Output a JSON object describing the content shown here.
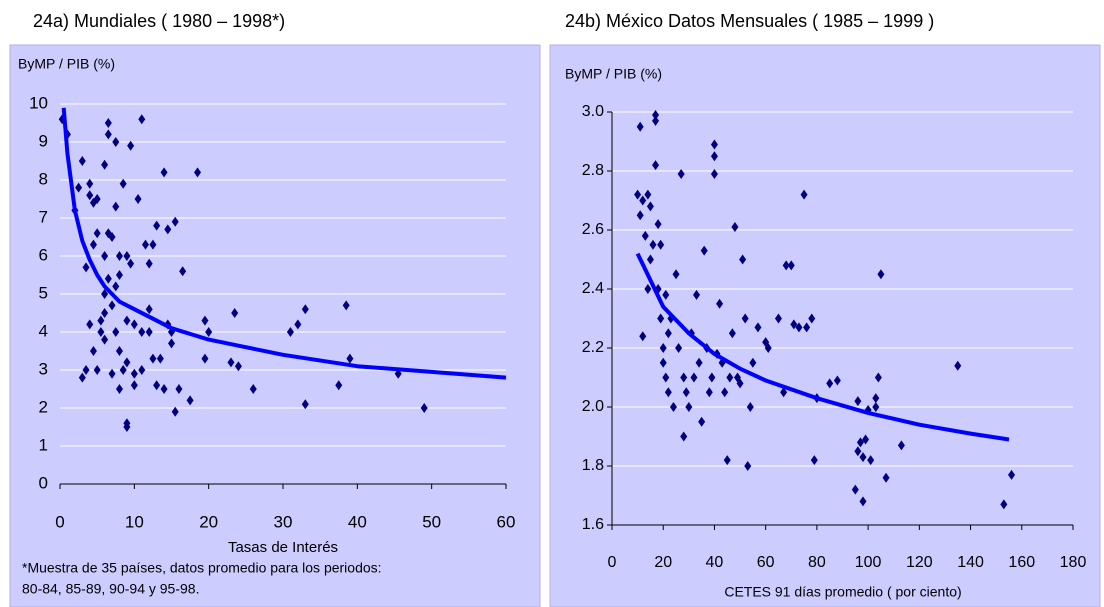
{
  "chart_data": [
    {
      "type": "scatter",
      "title": "24a) Mundiales ( 1980 – 1998*)",
      "ylabel": "ByMP / PIB (%)",
      "xlabel": "Tasas de Interés",
      "footnote": [
        "*Muestra de 35 países, datos promedio para los periodos:",
        "80-84, 85-89, 90-94 y 95-98."
      ],
      "xlim": [
        0,
        60
      ],
      "ylim": [
        0,
        10
      ],
      "xticks": [
        0,
        10,
        20,
        30,
        40,
        50,
        60
      ],
      "yticks": [
        0,
        1,
        2,
        3,
        4,
        5,
        6,
        7,
        8,
        9,
        10
      ],
      "grid": true,
      "series": [
        {
          "type": "scatter",
          "marker": "diamond",
          "color": "#000080",
          "x": [
            0.3,
            1,
            2,
            2.5,
            3,
            3.5,
            3,
            3.5,
            4,
            4,
            4.5,
            4,
            5,
            5,
            4.5,
            4.5,
            5,
            5.5,
            5.5,
            6,
            6,
            6,
            6,
            6,
            6.5,
            6.5,
            6.5,
            6.5,
            7,
            7,
            7,
            7.5,
            7.5,
            7.5,
            7.5,
            8,
            8,
            8,
            8,
            8.5,
            8.5,
            9,
            9,
            9,
            9,
            9,
            9.5,
            9.5,
            10,
            10,
            10,
            10.5,
            11,
            11,
            11,
            11.5,
            12,
            12,
            12,
            12.5,
            12.5,
            13,
            13,
            13.5,
            14,
            14,
            14.5,
            14.5,
            15,
            15,
            15.5,
            15.5,
            16,
            16.5,
            17.5,
            18.5,
            19.5,
            19.5,
            20,
            23,
            23.5,
            24,
            26,
            31,
            32,
            33,
            33,
            37.5,
            38.5,
            39,
            45.5,
            49
          ],
          "values": [
            9.6,
            9.2,
            7.2,
            7.8,
            8.5,
            5.7,
            2.8,
            3,
            4.2,
            7.6,
            7.4,
            7.9,
            7.5,
            6.6,
            6.3,
            3.5,
            3,
            4,
            4.3,
            8.4,
            6,
            5,
            4.5,
            3.8,
            9.2,
            9.5,
            6.6,
            5.4,
            2.9,
            4.7,
            6.5,
            9,
            7.3,
            5.2,
            4,
            6,
            5.5,
            3.5,
            2.5,
            7.9,
            3,
            1.6,
            1.5,
            6,
            4.3,
            3.2,
            8.9,
            5.8,
            4.2,
            2.6,
            2.9,
            7.5,
            9.6,
            4,
            3,
            6.3,
            5.8,
            4.6,
            4,
            6.3,
            3.3,
            6.8,
            2.6,
            3.3,
            8.2,
            2.5,
            6.7,
            4.2,
            4,
            3.7,
            6.9,
            1.9,
            2.5,
            5.6,
            2.2,
            8.2,
            4.3,
            3.3,
            4,
            3.2,
            4.5,
            3.1,
            2.5,
            4,
            4.2,
            4.6,
            2.1,
            2.6,
            4.7,
            3.3,
            2.9,
            2
          ]
        },
        {
          "type": "line",
          "color": "#0000ff",
          "x": [
            0.5,
            1,
            2,
            3,
            4,
            5,
            6,
            8,
            10,
            15,
            20,
            25,
            30,
            40,
            50,
            60
          ],
          "values": [
            9.9,
            8.7,
            7.2,
            6.4,
            5.9,
            5.5,
            5.2,
            4.8,
            4.6,
            4.1,
            3.8,
            3.6,
            3.4,
            3.1,
            2.95,
            2.8
          ]
        }
      ]
    },
    {
      "type": "scatter",
      "title": "24b) México Datos Mensuales ( 1985 – 1999 )",
      "ylabel": "ByMP / PIB (%)",
      "xlabel": "CETES 91 días promedio ( por ciento)",
      "xlim": [
        0,
        180
      ],
      "ylim": [
        1.6,
        3.0
      ],
      "xticks": [
        0,
        20,
        40,
        60,
        80,
        100,
        120,
        140,
        160,
        180
      ],
      "yticks": [
        1.6,
        1.8,
        {
          "value": 2,
          "label": "2.0"
        },
        2.2,
        2.4,
        2.6,
        2.8,
        {
          "value": 3,
          "label": "3.0"
        }
      ],
      "grid": true,
      "series": [
        {
          "type": "scatter",
          "marker": "diamond",
          "color": "#000080",
          "x": [
            10,
            11,
            11,
            12,
            12,
            13,
            14,
            14,
            15,
            15,
            16,
            17,
            17,
            17,
            18,
            18,
            19,
            19,
            20,
            20,
            21,
            21,
            22,
            22,
            23,
            24,
            25,
            26,
            27,
            28,
            28,
            29,
            30,
            31,
            32,
            33,
            34,
            35,
            36,
            37,
            38,
            39,
            40,
            40,
            40,
            41,
            42,
            43,
            44,
            45,
            46,
            47,
            48,
            49,
            50,
            51,
            52,
            53,
            54,
            55,
            57,
            60,
            61,
            65,
            67,
            68,
            70,
            71,
            73,
            75,
            76,
            78,
            79,
            80,
            85,
            88,
            95,
            96,
            96,
            97,
            98,
            98,
            99,
            100,
            101,
            103,
            103,
            104,
            105,
            107,
            113,
            135,
            153,
            156
          ],
          "values": [
            2.72,
            2.65,
            2.95,
            2.7,
            2.24,
            2.58,
            2.4,
            2.72,
            2.68,
            2.5,
            2.55,
            2.97,
            2.99,
            2.82,
            2.62,
            2.4,
            2.55,
            2.3,
            2.2,
            2.15,
            2.38,
            2.1,
            2.25,
            2.05,
            2.3,
            2.0,
            2.45,
            2.2,
            2.79,
            2.1,
            1.9,
            2.05,
            2.0,
            2.25,
            2.1,
            2.38,
            2.15,
            1.95,
            2.53,
            2.2,
            2.05,
            2.1,
            2.89,
            2.85,
            2.79,
            2.18,
            2.35,
            2.15,
            2.05,
            1.82,
            2.1,
            2.25,
            2.61,
            2.1,
            2.08,
            2.5,
            2.3,
            1.8,
            2.0,
            2.15,
            2.27,
            2.22,
            2.2,
            2.3,
            2.05,
            2.48,
            2.48,
            2.28,
            2.27,
            2.72,
            2.27,
            2.3,
            1.82,
            2.03,
            2.08,
            2.09,
            1.72,
            1.85,
            2.02,
            1.88,
            1.83,
            1.68,
            1.89,
            1.99,
            1.82,
            2.0,
            2.03,
            2.1,
            2.45,
            1.76,
            1.87,
            2.14,
            1.67,
            1.77
          ]
        },
        {
          "type": "line",
          "color": "#0000ff",
          "x": [
            10,
            15,
            20,
            30,
            40,
            50,
            60,
            80,
            100,
            120,
            140,
            155
          ],
          "values": [
            2.52,
            2.43,
            2.34,
            2.25,
            2.18,
            2.13,
            2.09,
            2.03,
            1.98,
            1.94,
            1.91,
            1.89
          ]
        }
      ]
    }
  ]
}
